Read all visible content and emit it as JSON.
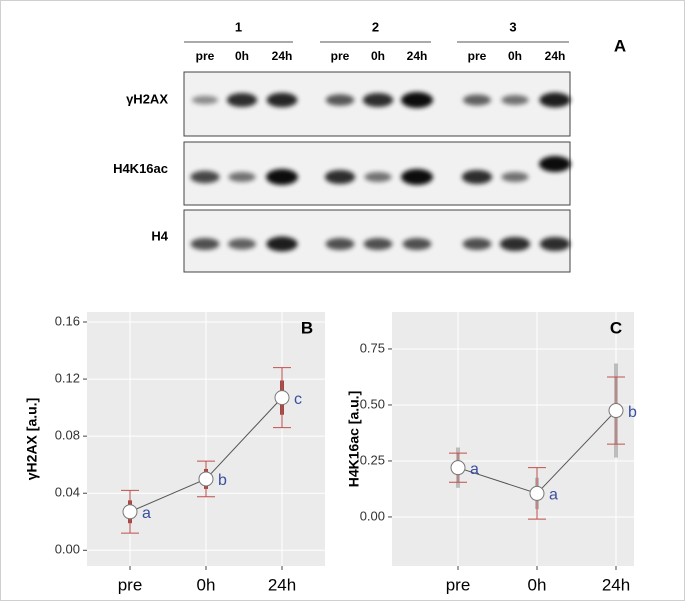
{
  "blot": {
    "panel_label": "A",
    "groups": [
      "1",
      "2",
      "3"
    ],
    "lanes": [
      "pre",
      "0h",
      "24h",
      "pre",
      "0h",
      "24h",
      "pre",
      "0h",
      "24h"
    ],
    "rows": [
      "γH2AX",
      "H4K16ac",
      "H4"
    ]
  },
  "chart_data": [
    {
      "type": "errorline",
      "panel_label": "B",
      "y_label": "γH2AX  [a.u.]",
      "categories": [
        "pre",
        "0h",
        "24h"
      ],
      "values": [
        0.027,
        0.05,
        0.107
      ],
      "errors": [
        0.015,
        0.0125,
        0.021
      ],
      "se": [
        0.008,
        0.007,
        0.012
      ],
      "annotations": [
        "a",
        "b",
        "c"
      ],
      "ylim": [
        -0.011,
        0.167
      ],
      "yticks": [
        {
          "value": 0,
          "label": "0.00"
        },
        0.04,
        0.08,
        0.12,
        0.16
      ],
      "grid": true,
      "line_color": "#555555",
      "error_color": "#c0504d",
      "se_color": "#8b2020",
      "annotation_color": "#3a4fa0"
    },
    {
      "type": "errorline",
      "panel_label": "C",
      "y_label": "H4K16ac  [a.u.]",
      "categories": [
        "pre",
        "0h",
        "24h"
      ],
      "values": [
        0.22,
        0.105,
        0.475
      ],
      "errors": [
        0.065,
        0.115,
        0.15
      ],
      "se": [
        0.09,
        0.07,
        0.21
      ],
      "annotations": [
        "a",
        "a",
        "b"
      ],
      "ylim": [
        -0.219,
        0.915
      ],
      "yticks": [
        {
          "value": 0,
          "label": "0.00"
        },
        0.25,
        {
          "value": 0.5,
          "label": "0.50"
        },
        0.75
      ],
      "grid": true,
      "line_color": "#555555",
      "error_color": "#c0504d",
      "se_color": "#b0b0b0",
      "annotation_color": "#3a4fa0"
    }
  ]
}
